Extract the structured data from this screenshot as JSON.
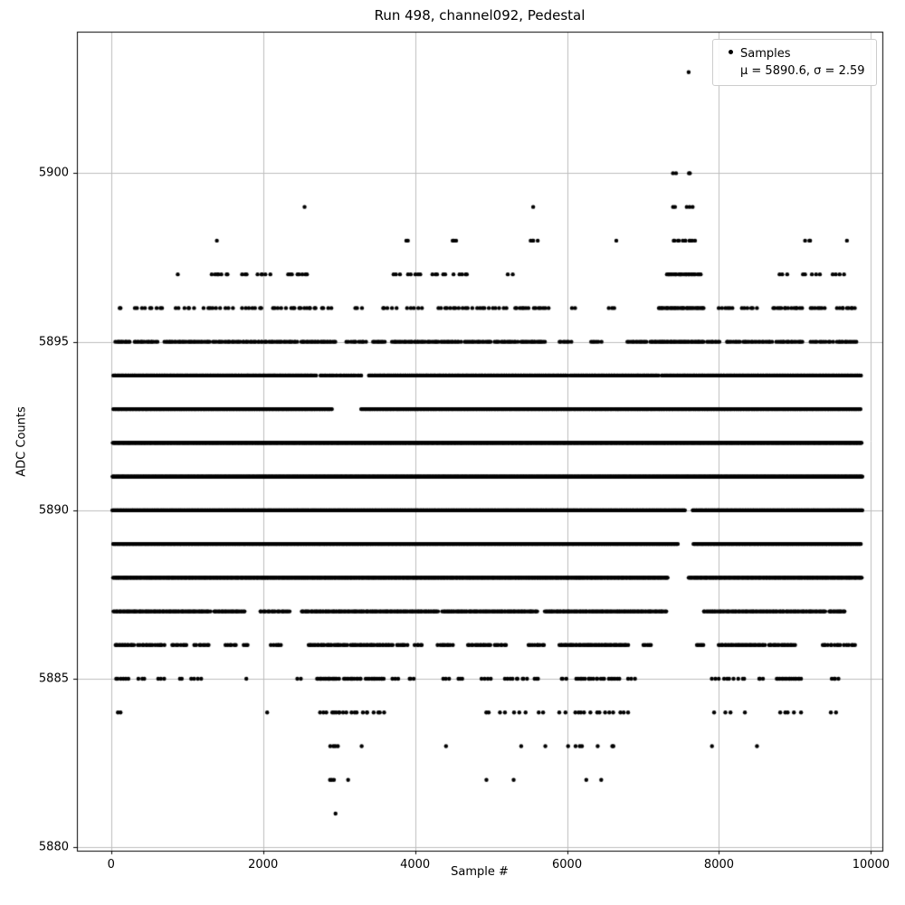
{
  "figure": {
    "title": "Run 498, channel092, Pedestal",
    "xlabel": "Sample #",
    "ylabel": "ADC Counts",
    "legend": {
      "line1": "Samples",
      "line2": "μ = 5890.6, σ = 2.59"
    }
  },
  "chart_data": {
    "type": "scatter",
    "title": "Run 498, channel092, Pedestal",
    "xlabel": "Sample #",
    "ylabel": "ADC Counts",
    "xlim": [
      -450,
      10150
    ],
    "ylim": [
      5879.9,
      5904.2
    ],
    "xticks": [
      0,
      2000,
      4000,
      6000,
      8000,
      10000
    ],
    "yticks": [
      5880,
      5885,
      5890,
      5895,
      5900
    ],
    "grid": true,
    "grid_color": "#bdbdbd",
    "marker_color": "#000000",
    "marker_radius": 2.2,
    "legend_position": "upper right",
    "stats": {
      "mu": 5890.6,
      "sigma": 2.59,
      "n_samples_approx": 10000
    },
    "adc_levels": [
      {
        "adc": 5881,
        "segments": [
          [
            2950,
            2965,
            1
          ]
        ]
      },
      {
        "adc": 5882,
        "segments": [
          [
            2850,
            2955,
            3
          ],
          [
            3100,
            3135,
            1
          ],
          [
            4930,
            4955,
            1
          ],
          [
            5290,
            5315,
            1
          ],
          [
            6240,
            6265,
            1
          ],
          [
            6440,
            6465,
            1
          ]
        ]
      },
      {
        "adc": 5883,
        "segments": [
          [
            2880,
            3005,
            4
          ],
          [
            3290,
            3315,
            1
          ],
          [
            4390,
            4415,
            1
          ],
          [
            5390,
            5415,
            1
          ],
          [
            5690,
            5715,
            1
          ],
          [
            5990,
            6015,
            1
          ],
          [
            6090,
            6215,
            3
          ],
          [
            6390,
            6415,
            1
          ],
          [
            6590,
            6615,
            2
          ],
          [
            7890,
            7915,
            1
          ],
          [
            8490,
            8515,
            1
          ]
        ]
      },
      {
        "adc": 5884,
        "segments": [
          [
            80,
            125,
            2
          ],
          [
            2045,
            2075,
            1
          ],
          [
            2750,
            2855,
            3
          ],
          [
            2895,
            3055,
            6
          ],
          [
            3095,
            3255,
            4
          ],
          [
            3295,
            3405,
            3
          ],
          [
            3445,
            3605,
            4
          ],
          [
            4895,
            5005,
            2
          ],
          [
            5095,
            5205,
            2
          ],
          [
            5295,
            5455,
            3
          ],
          [
            5595,
            5705,
            2
          ],
          [
            5895,
            6005,
            2
          ],
          [
            6095,
            6255,
            4
          ],
          [
            6295,
            6455,
            3
          ],
          [
            6495,
            6705,
            4
          ],
          [
            6745,
            6855,
            2
          ],
          [
            7895,
            7955,
            1
          ],
          [
            8045,
            8155,
            2
          ],
          [
            8295,
            8355,
            1
          ],
          [
            8795,
            9005,
            4
          ],
          [
            9045,
            9105,
            1
          ],
          [
            9445,
            9555,
            2
          ]
        ]
      },
      {
        "adc": 5885,
        "segments": [
          [
            50,
            250,
            6
          ],
          [
            350,
            450,
            3
          ],
          [
            600,
            700,
            3
          ],
          [
            900,
            950,
            2
          ],
          [
            1050,
            1200,
            4
          ],
          [
            1750,
            1790,
            1
          ],
          [
            2450,
            2500,
            2
          ],
          [
            2700,
            3000,
            18
          ],
          [
            3050,
            3300,
            12
          ],
          [
            3350,
            3600,
            12
          ],
          [
            3700,
            3800,
            3
          ],
          [
            3900,
            4000,
            3
          ],
          [
            4350,
            4450,
            3
          ],
          [
            4550,
            4650,
            3
          ],
          [
            4850,
            5000,
            4
          ],
          [
            5150,
            5500,
            9
          ],
          [
            5550,
            5650,
            3
          ],
          [
            5900,
            6000,
            3
          ],
          [
            6100,
            6500,
            15
          ],
          [
            6550,
            6700,
            6
          ],
          [
            6800,
            6900,
            3
          ],
          [
            7900,
            8000,
            3
          ],
          [
            8050,
            8200,
            4
          ],
          [
            8250,
            8350,
            3
          ],
          [
            8500,
            8600,
            3
          ],
          [
            8750,
            9100,
            16
          ],
          [
            9450,
            9600,
            4
          ]
        ]
      },
      {
        "adc": 5886,
        "segments": [
          [
            50,
            310,
            15
          ],
          [
            350,
            710,
            15
          ],
          [
            790,
            1010,
            8
          ],
          [
            1090,
            1310,
            8
          ],
          [
            1490,
            1660,
            6
          ],
          [
            1740,
            1810,
            3
          ],
          [
            2090,
            2260,
            6
          ],
          [
            2590,
            3110,
            27
          ],
          [
            3140,
            3710,
            30
          ],
          [
            3740,
            3910,
            7
          ],
          [
            3990,
            4110,
            5
          ],
          [
            4290,
            4510,
            9
          ],
          [
            4690,
            5010,
            15
          ],
          [
            5040,
            5210,
            7
          ],
          [
            5490,
            5710,
            9
          ],
          [
            5890,
            6810,
            52
          ],
          [
            6990,
            7110,
            5
          ],
          [
            7690,
            7810,
            5
          ],
          [
            7990,
            8610,
            33
          ],
          [
            8640,
            9010,
            18
          ],
          [
            9340,
            9610,
            10
          ],
          [
            9640,
            9810,
            6
          ]
        ]
      },
      {
        "adc": 5887,
        "segments": [
          [
            30,
            1310,
            95
          ],
          [
            1350,
            1760,
            28
          ],
          [
            1950,
            2360,
            22
          ],
          [
            2500,
            4310,
            125
          ],
          [
            4350,
            5610,
            88
          ],
          [
            5700,
            7310,
            112
          ],
          [
            7790,
            9410,
            105
          ],
          [
            9440,
            9660,
            16
          ]
        ]
      },
      {
        "adc": 5888,
        "segments": [
          [
            25,
            7330,
            760
          ],
          [
            7600,
            9880,
            220
          ]
        ]
      },
      {
        "adc": 5889,
        "segments": [
          [
            20,
            7460,
            1000
          ],
          [
            7660,
            9870,
            290
          ]
        ]
      },
      {
        "adc": 5890,
        "segments": [
          [
            15,
            7555,
            1150
          ],
          [
            7650,
            9890,
            345
          ]
        ]
      },
      {
        "adc": 5891,
        "segments": [
          [
            15,
            9890,
            1510
          ]
        ]
      },
      {
        "adc": 5892,
        "segments": [
          [
            20,
            9880,
            1330
          ]
        ]
      },
      {
        "adc": 5893,
        "segments": [
          [
            25,
            2910,
            330
          ],
          [
            3290,
            9870,
            680
          ]
        ]
      },
      {
        "adc": 5894,
        "segments": [
          [
            25,
            2700,
            230
          ],
          [
            2740,
            3310,
            30
          ],
          [
            3390,
            6010,
            220
          ],
          [
            6040,
            7210,
            95
          ],
          [
            7240,
            9870,
            215
          ]
        ]
      },
      {
        "adc": 5895,
        "segments": [
          [
            55,
            260,
            12
          ],
          [
            295,
            610,
            16
          ],
          [
            690,
            1310,
            32
          ],
          [
            1340,
            2460,
            56
          ],
          [
            2490,
            2960,
            26
          ],
          [
            3090,
            3360,
            11
          ],
          [
            3440,
            3610,
            9
          ],
          [
            3690,
            4610,
            48
          ],
          [
            4640,
            5010,
            19
          ],
          [
            5040,
            5360,
            16
          ],
          [
            5390,
            5710,
            19
          ],
          [
            5890,
            6060,
            7
          ],
          [
            6290,
            6460,
            6
          ],
          [
            6790,
            7060,
            13
          ],
          [
            7090,
            7810,
            48
          ],
          [
            7840,
            8010,
            9
          ],
          [
            8090,
            8710,
            27
          ],
          [
            8740,
            9110,
            17
          ],
          [
            9190,
            9510,
            11
          ],
          [
            9540,
            9810,
            13
          ]
        ]
      },
      {
        "adc": 5896,
        "segments": [
          [
            95,
            135,
            2
          ],
          [
            290,
            710,
            9
          ],
          [
            840,
            1110,
            6
          ],
          [
            1190,
            1610,
            9
          ],
          [
            1690,
            2010,
            7
          ],
          [
            2090,
            2310,
            5
          ],
          [
            2340,
            2720,
            11
          ],
          [
            2740,
            2910,
            4
          ],
          [
            3190,
            3310,
            3
          ],
          [
            3540,
            3760,
            5
          ],
          [
            3890,
            4110,
            5
          ],
          [
            4290,
            4710,
            11
          ],
          [
            4740,
            5210,
            11
          ],
          [
            5290,
            5510,
            7
          ],
          [
            5540,
            5760,
            7
          ],
          [
            6040,
            6110,
            2
          ],
          [
            6540,
            6660,
            3
          ],
          [
            7190,
            7810,
            32
          ],
          [
            7990,
            8210,
            6
          ],
          [
            8290,
            8510,
            6
          ],
          [
            8690,
            9110,
            14
          ],
          [
            9190,
            9410,
            7
          ],
          [
            9540,
            9810,
            9
          ]
        ]
      },
      {
        "adc": 5897,
        "segments": [
          [
            855,
            885,
            1
          ],
          [
            1300,
            1560,
            7
          ],
          [
            1700,
            1810,
            3
          ],
          [
            1900,
            2110,
            5
          ],
          [
            2300,
            2610,
            8
          ],
          [
            3700,
            3815,
            3
          ],
          [
            3900,
            4110,
            5
          ],
          [
            4200,
            4420,
            5
          ],
          [
            4500,
            4720,
            5
          ],
          [
            5200,
            5310,
            2
          ],
          [
            7300,
            7760,
            24
          ],
          [
            8790,
            8910,
            3
          ],
          [
            9080,
            9330,
            5
          ],
          [
            9490,
            9660,
            4
          ]
        ]
      },
      {
        "adc": 5898,
        "segments": [
          [
            1385,
            1415,
            1
          ],
          [
            3880,
            3930,
            2
          ],
          [
            4480,
            4545,
            3
          ],
          [
            5495,
            5615,
            4
          ],
          [
            6625,
            6675,
            1
          ],
          [
            7380,
            7700,
            11
          ],
          [
            9100,
            9240,
            3
          ],
          [
            9680,
            9725,
            1
          ]
        ]
      },
      {
        "adc": 5899,
        "segments": [
          [
            2540,
            2565,
            1
          ],
          [
            5545,
            5570,
            1
          ],
          [
            7390,
            7450,
            2
          ],
          [
            7560,
            7660,
            3
          ]
        ]
      },
      {
        "adc": 5900,
        "segments": [
          [
            7385,
            7445,
            2
          ],
          [
            7585,
            7645,
            2
          ]
        ]
      },
      {
        "adc": 5903,
        "segments": [
          [
            7590,
            7615,
            1
          ]
        ]
      }
    ]
  }
}
